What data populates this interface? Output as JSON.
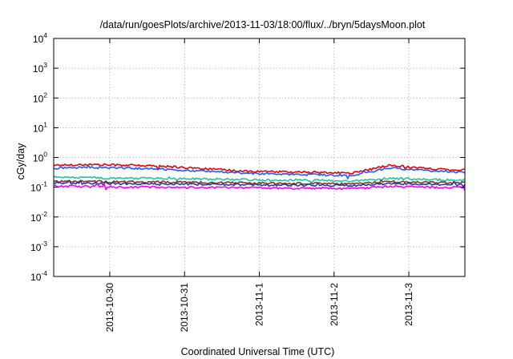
{
  "chart_data": {
    "type": "line",
    "title": "/data/run/goesPlots/archive/2013-11-03/18:00/flux/../bryn/5daysMoon.plot",
    "xlabel": "Coordinated Universal Time (UTC)",
    "ylabel": "cGy/day",
    "yscale": "log",
    "ylim": [
      0.0001,
      10000
    ],
    "yticks": [
      {
        "base": "10",
        "exp": "-4",
        "value": 0.0001
      },
      {
        "base": "10",
        "exp": "-3",
        "value": 0.001
      },
      {
        "base": "10",
        "exp": "-2",
        "value": 0.01
      },
      {
        "base": "10",
        "exp": "-1",
        "value": 0.1
      },
      {
        "base": "10",
        "exp": "0",
        "value": 1
      },
      {
        "base": "10",
        "exp": "1",
        "value": 10
      },
      {
        "base": "10",
        "exp": "2",
        "value": 100
      },
      {
        "base": "10",
        "exp": "3",
        "value": 1000
      },
      {
        "base": "10",
        "exp": "4",
        "value": 10000
      }
    ],
    "xlim": [
      "2013-10-29 06:00",
      "2013-11-03 18:00"
    ],
    "xticks": [
      "2013-10-30",
      "2013-10-31",
      "2013-11-1",
      "2013-11-2",
      "2013-11-3"
    ],
    "xtick_values": [
      "2013-10-30 00:00",
      "2013-10-31 00:00",
      "2013-11-01 00:00",
      "2013-11-02 00:00",
      "2013-11-03 00:00"
    ],
    "grid": true,
    "legend": "none",
    "series": [
      {
        "color": "#e8000b",
        "x": [
          "2013-10-29 06:00",
          "2013-10-29 18:00",
          "2013-10-30 06:00",
          "2013-10-30 18:00",
          "2013-10-31 06:00",
          "2013-10-31 18:00",
          "2013-11-01 06:00",
          "2013-11-01 18:00",
          "2013-11-02 06:00",
          "2013-11-02 18:00",
          "2013-11-03 06:00",
          "2013-11-03 18:00"
        ],
        "values": [
          0.55,
          0.58,
          0.55,
          0.5,
          0.42,
          0.35,
          0.33,
          0.31,
          0.3,
          0.55,
          0.42,
          0.38
        ]
      },
      {
        "color": "#1f5cff",
        "x": [
          "2013-10-29 06:00",
          "2013-10-29 18:00",
          "2013-10-30 06:00",
          "2013-10-30 18:00",
          "2013-10-31 06:00",
          "2013-10-31 18:00",
          "2013-11-01 06:00",
          "2013-11-01 18:00",
          "2013-11-02 06:00",
          "2013-11-02 18:00",
          "2013-11-03 06:00",
          "2013-11-03 18:00"
        ],
        "values": [
          0.44,
          0.46,
          0.44,
          0.4,
          0.35,
          0.3,
          0.28,
          0.26,
          0.25,
          0.45,
          0.36,
          0.32
        ]
      },
      {
        "color": "#21c4a0",
        "x": [
          "2013-10-29 06:00",
          "2013-10-29 18:00",
          "2013-10-30 06:00",
          "2013-10-30 18:00",
          "2013-10-31 06:00",
          "2013-10-31 18:00",
          "2013-11-01 06:00",
          "2013-11-01 18:00",
          "2013-11-02 06:00",
          "2013-11-02 18:00",
          "2013-11-03 06:00",
          "2013-11-03 18:00"
        ],
        "values": [
          0.22,
          0.21,
          0.2,
          0.2,
          0.19,
          0.18,
          0.17,
          0.17,
          0.16,
          0.2,
          0.18,
          0.17
        ]
      },
      {
        "color": "#7a3a2a",
        "x": [
          "2013-10-29 06:00",
          "2013-10-29 18:00",
          "2013-10-30 06:00",
          "2013-10-30 18:00",
          "2013-10-31 06:00",
          "2013-10-31 18:00",
          "2013-11-01 06:00",
          "2013-11-01 18:00",
          "2013-11-02 06:00",
          "2013-11-02 18:00",
          "2013-11-03 06:00",
          "2013-11-03 18:00"
        ],
        "values": [
          0.16,
          0.155,
          0.15,
          0.15,
          0.145,
          0.14,
          0.135,
          0.135,
          0.13,
          0.155,
          0.145,
          0.14
        ]
      },
      {
        "color": "#2a3a9a",
        "x": [
          "2013-10-29 06:00",
          "2013-10-29 18:00",
          "2013-10-30 06:00",
          "2013-10-30 18:00",
          "2013-10-31 06:00",
          "2013-10-31 18:00",
          "2013-11-01 06:00",
          "2013-11-01 18:00",
          "2013-11-02 06:00",
          "2013-11-02 18:00",
          "2013-11-03 06:00",
          "2013-11-03 18:00"
        ],
        "values": [
          0.14,
          0.135,
          0.13,
          0.13,
          0.125,
          0.12,
          0.118,
          0.118,
          0.115,
          0.135,
          0.125,
          0.12
        ]
      },
      {
        "color": "#ff00ff",
        "x": [
          "2013-10-29 06:00",
          "2013-10-29 18:00",
          "2013-10-30 06:00",
          "2013-10-30 18:00",
          "2013-10-31 06:00",
          "2013-10-31 18:00",
          "2013-11-01 06:00",
          "2013-11-01 18:00",
          "2013-11-02 06:00",
          "2013-11-02 18:00",
          "2013-11-03 06:00",
          "2013-11-03 18:00"
        ],
        "values": [
          0.11,
          0.105,
          0.1,
          0.1,
          0.098,
          0.095,
          0.093,
          0.093,
          0.09,
          0.105,
          0.1,
          0.098
        ]
      }
    ]
  }
}
